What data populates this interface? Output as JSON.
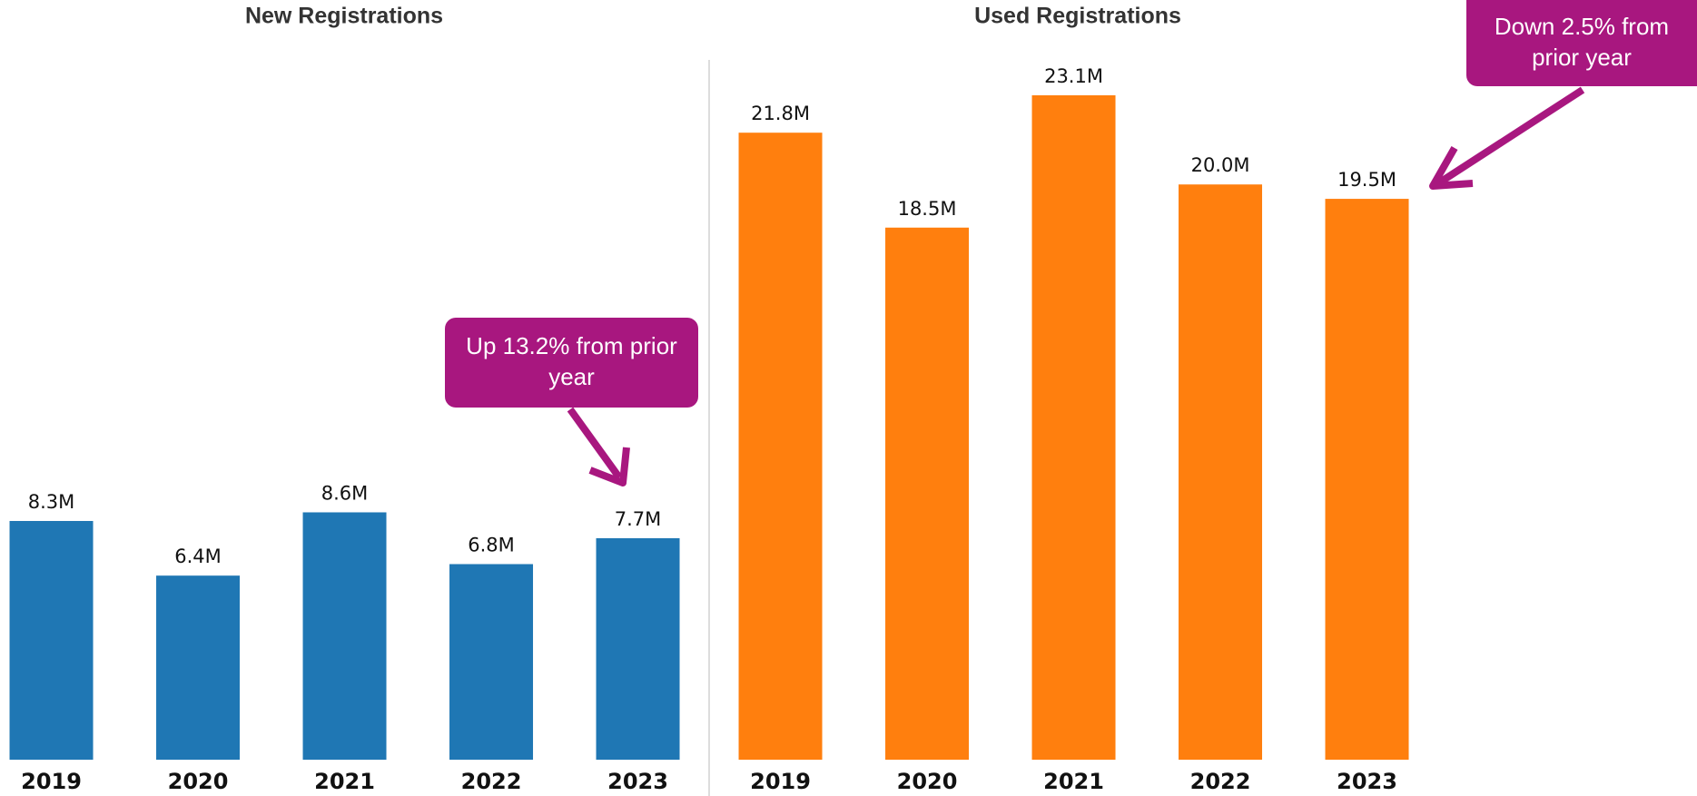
{
  "chart_data": [
    {
      "type": "bar",
      "title": "New Registrations",
      "categories": [
        "2019",
        "2020",
        "2021",
        "2022",
        "2023"
      ],
      "values": [
        8.3,
        6.4,
        8.6,
        6.8,
        7.7
      ],
      "value_labels": [
        "8.3M",
        "6.4M",
        "8.6M",
        "6.8M",
        "7.7M"
      ],
      "color": "#1f77b4",
      "annotation": "Up 13.2% from prior year"
    },
    {
      "type": "bar",
      "title": "Used Registrations",
      "categories": [
        "2019",
        "2020",
        "2021",
        "2022",
        "2023"
      ],
      "values": [
        21.8,
        18.5,
        23.1,
        20.0,
        19.5
      ],
      "value_labels": [
        "21.8M",
        "18.5M",
        "23.1M",
        "20.0M",
        "19.5M"
      ],
      "color": "#ff7f0e",
      "annotation": "Down 2.5% from prior year"
    }
  ]
}
